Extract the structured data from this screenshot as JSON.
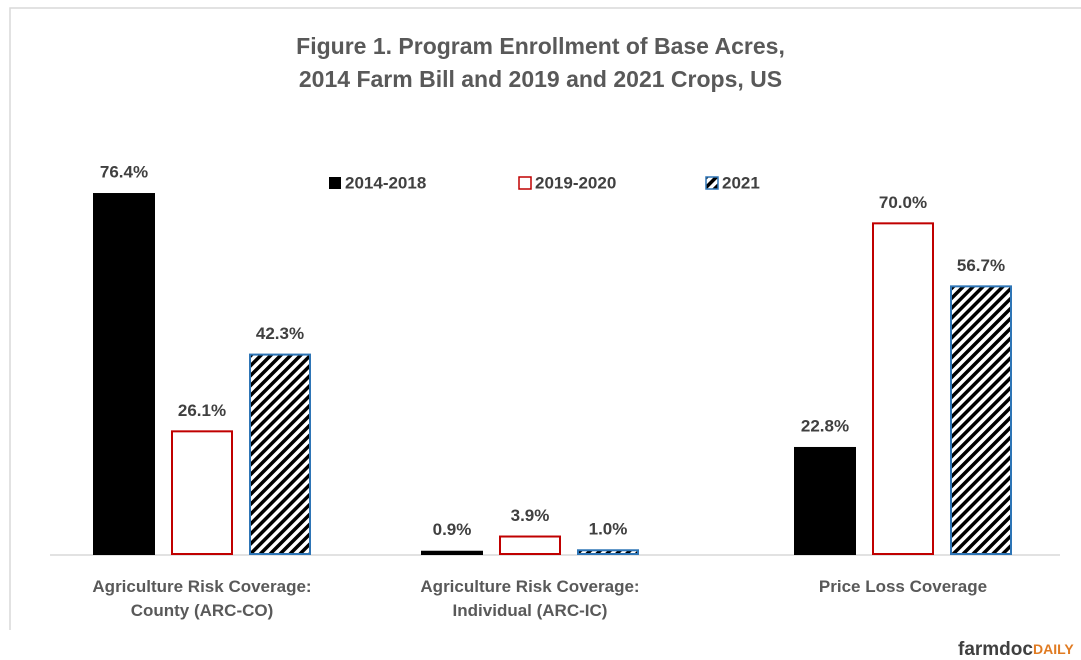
{
  "chart_data": {
    "type": "bar",
    "title": "Figure 1.  Program Enrollment of Base Acres,\n2014 Farm Bill and 2019 and 2021 Crops, US",
    "categories": [
      "Agriculture Risk Coverage:\nCounty (ARC-CO)",
      "Agriculture Risk Coverage:\nIndividual (ARC-IC)",
      "Price Loss Coverage"
    ],
    "series": [
      {
        "name": "2014-2018",
        "color": "#000000",
        "fill": "solid",
        "values": [
          76.4,
          0.9,
          22.8
        ],
        "value_labels": [
          "76.4%",
          "0.9%",
          "22.8%"
        ]
      },
      {
        "name": "2019-2020",
        "color": "#c00000",
        "fill": "outline",
        "values": [
          26.1,
          3.9,
          70.0
        ],
        "value_labels": [
          "26.1%",
          "3.9%",
          "70.0%"
        ]
      },
      {
        "name": "2021",
        "color": "#2e75b6",
        "fill": "hatch",
        "values": [
          42.3,
          1.0,
          56.7
        ],
        "value_labels": [
          "42.3%",
          "1.0%",
          "56.7%"
        ]
      }
    ],
    "ylim": [
      0,
      80
    ],
    "legend": "top",
    "source": [
      "farmdoc",
      "DAILY"
    ]
  }
}
